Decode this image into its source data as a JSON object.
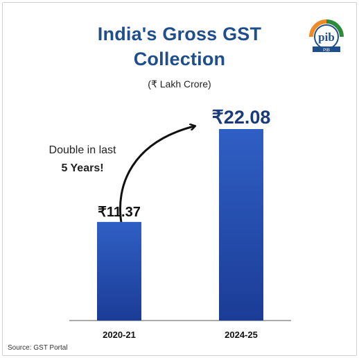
{
  "header": {
    "title_line1": "India's Gross GST",
    "title_line2": "Collection",
    "unit": "(₹ Lakh Crore)"
  },
  "annotation": {
    "line1": "Double in last",
    "line2": "5 Years!"
  },
  "logo": {
    "text": "pib",
    "subtext": "PIB"
  },
  "footer": {
    "source": "Source: GST Portal"
  },
  "colors": {
    "title": "#1f4e8c",
    "bar_top": "#2f5fc4",
    "bar_bottom": "#1b3c96",
    "label": "#1a3a7a"
  },
  "chart_data": {
    "type": "bar",
    "title": "India's Gross GST Collection",
    "ylabel": "(₹ Lakh Crore)",
    "categories": [
      "2020-21",
      "2024-25"
    ],
    "values": [
      11.37,
      22.08
    ],
    "value_labels": [
      "₹11.37",
      "₹22.08"
    ],
    "ylim": [
      0,
      22.08
    ],
    "grid": false,
    "legend": "none"
  }
}
